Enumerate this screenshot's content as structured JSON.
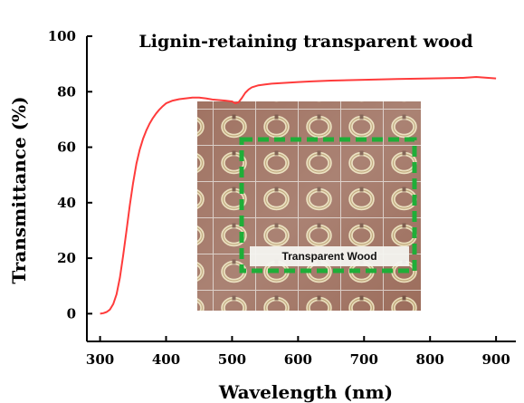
{
  "chart_data": {
    "type": "line",
    "title": "Lignin-retaining transparent wood",
    "xlabel": "Wavelength (nm)",
    "ylabel": "Transmittance (%)",
    "xlim": [
      280,
      930
    ],
    "ylim": [
      -10,
      100
    ],
    "xticks": [
      300,
      400,
      500,
      600,
      700,
      800,
      900
    ],
    "yticks": [
      0,
      20,
      40,
      60,
      80,
      100
    ],
    "grid": false,
    "series": [
      {
        "color": "#ff3b3b",
        "x": [
          300,
          305,
          310,
          315,
          320,
          325,
          330,
          335,
          340,
          345,
          350,
          355,
          360,
          365,
          370,
          375,
          380,
          385,
          390,
          395,
          400,
          410,
          420,
          430,
          440,
          450,
          460,
          470,
          480,
          490,
          500,
          505,
          510,
          515,
          520,
          525,
          530,
          540,
          550,
          560,
          580,
          600,
          620,
          650,
          700,
          750,
          800,
          850,
          870,
          900
        ],
        "y": [
          0,
          0.2,
          0.6,
          1.5,
          3.5,
          7,
          13,
          21,
          30,
          39,
          47,
          54,
          59,
          63,
          66,
          68.5,
          70.5,
          72.2,
          73.6,
          74.8,
          75.8,
          76.8,
          77.3,
          77.6,
          77.9,
          77.9,
          77.6,
          77.2,
          77.0,
          76.8,
          76.5,
          75.8,
          76.2,
          77.8,
          79.6,
          80.8,
          81.6,
          82.3,
          82.6,
          82.9,
          83.2,
          83.5,
          83.7,
          84.0,
          84.3,
          84.6,
          84.8,
          85.0,
          85.3,
          84.8
        ]
      }
    ],
    "inset_label": "Transparent   Wood"
  },
  "colors": {
    "line": "#ff3b3b",
    "frame": "#22a53a",
    "inset_bg": "#9a6a58"
  }
}
